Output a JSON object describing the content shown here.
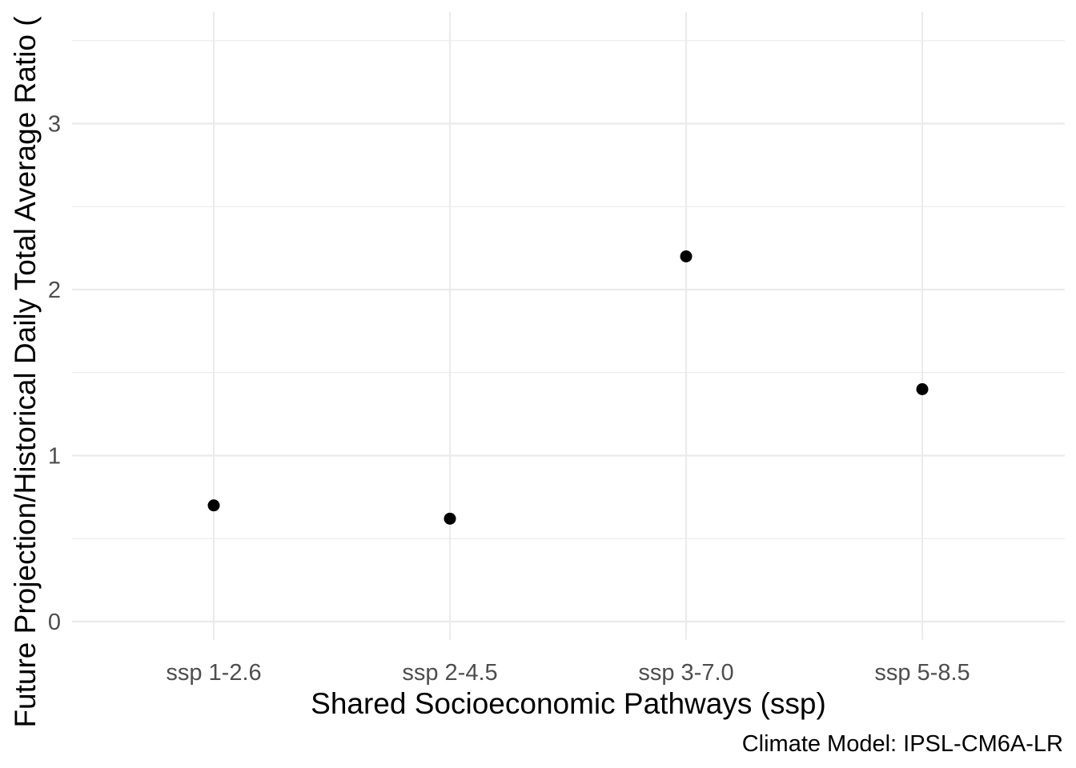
{
  "chart_data": {
    "type": "scatter",
    "categories": [
      "ssp 1-2.6",
      "ssp 2-4.5",
      "ssp 3-7.0",
      "ssp 5-8.5"
    ],
    "values": [
      0.7,
      0.62,
      2.2,
      1.4
    ],
    "xlabel": "Shared Socioeconomic Pathways (ssp)",
    "ylabel": "Future Projection/Historical Daily Total Average Ratio (",
    "caption": "Climate Model: IPSL-CM6A-LR",
    "ylim": [
      0,
      3.5
    ],
    "yticks": [
      "0",
      "1",
      "2",
      "3"
    ],
    "grid": true,
    "legend": "none",
    "point_color": "#000000"
  }
}
